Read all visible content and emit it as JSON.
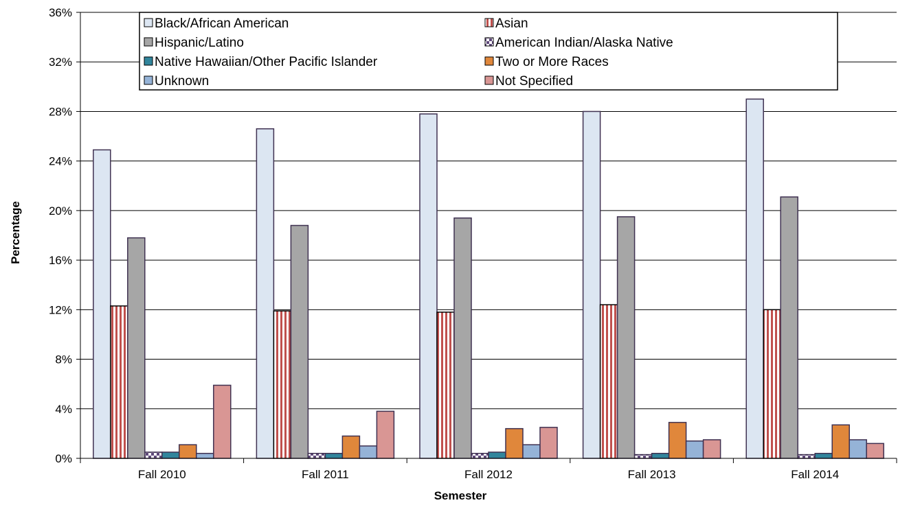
{
  "chart_data": {
    "type": "bar",
    "xlabel": "Semester",
    "ylabel": "Percentage",
    "categories": [
      "Fall 2010",
      "Fall 2011",
      "Fall 2012",
      "Fall 2013",
      "Fall 2014"
    ],
    "ylim": [
      0,
      36
    ],
    "yticks": [
      "0%",
      "4%",
      "8%",
      "12%",
      "16%",
      "20%",
      "24%",
      "28%",
      "32%",
      "36%"
    ],
    "grid": true,
    "legend_position": "top",
    "series": [
      {
        "name": "Black/African American",
        "values": [
          24.9,
          26.6,
          27.8,
          28.0,
          29.0
        ],
        "color": "#dce6f2",
        "pattern": "solid"
      },
      {
        "name": "Asian",
        "values": [
          12.3,
          11.9,
          11.8,
          12.4,
          12.0
        ],
        "color": "#c0504d",
        "pattern": "vertical-stripes"
      },
      {
        "name": "Hispanic/Latino",
        "values": [
          17.8,
          18.8,
          19.4,
          19.5,
          21.1
        ],
        "color": "#a6a6a6",
        "pattern": "solid"
      },
      {
        "name": "American Indian/Alaska Native",
        "values": [
          0.5,
          0.4,
          0.4,
          0.3,
          0.3
        ],
        "color": "#604a7b",
        "pattern": "checker"
      },
      {
        "name": "Native Hawaiian/Other Pacific Islander",
        "values": [
          0.5,
          0.4,
          0.5,
          0.4,
          0.4
        ],
        "color": "#31859c",
        "pattern": "solid"
      },
      {
        "name": "Two or More Races",
        "values": [
          1.1,
          1.8,
          2.4,
          2.9,
          2.7
        ],
        "color": "#e0873b",
        "pattern": "solid"
      },
      {
        "name": "Unknown",
        "values": [
          0.4,
          1.0,
          1.1,
          1.4,
          1.5
        ],
        "color": "#95b3d7",
        "pattern": "solid"
      },
      {
        "name": "Not Specified",
        "values": [
          5.9,
          3.8,
          2.5,
          1.5,
          1.2
        ],
        "color": "#d99694",
        "pattern": "solid"
      }
    ]
  }
}
